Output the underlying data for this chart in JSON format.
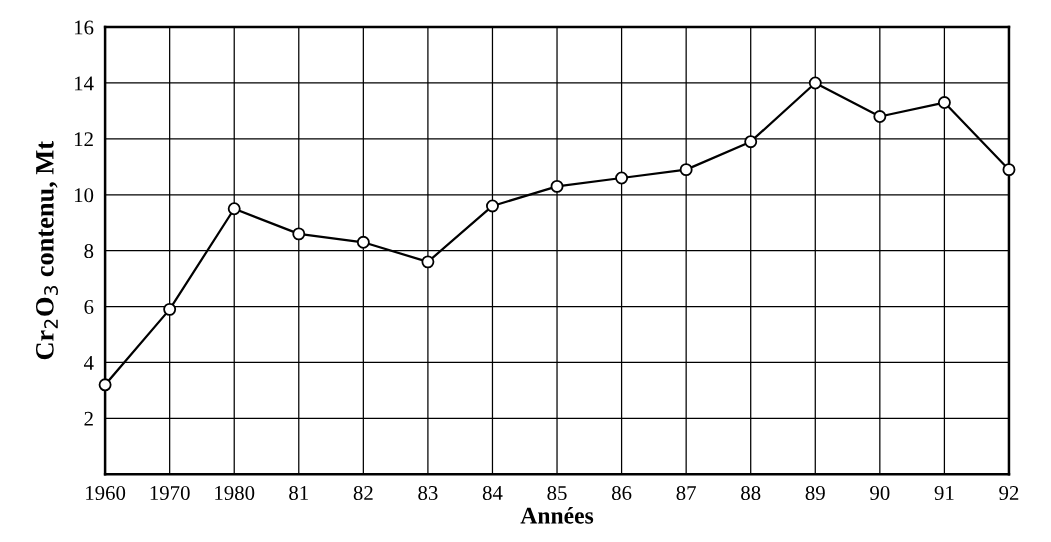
{
  "chart_data": {
    "type": "line",
    "xlabel": "Années",
    "ylabel": "Cr$_{2}$O$_{3}$ contenu, Mt",
    "categories": [
      "1960",
      "1970",
      "1980",
      "81",
      "82",
      "83",
      "84",
      "85",
      "86",
      "87",
      "88",
      "89",
      "90",
      "91",
      "92"
    ],
    "series": [
      {
        "color": "#000000",
        "values": [
          3.2,
          5.9,
          9.5,
          8.6,
          8.3,
          7.6,
          9.6,
          10.3,
          10.6,
          10.9,
          11.9,
          14.0,
          12.8,
          13.3,
          10.9
        ]
      }
    ],
    "ylim": [
      0,
      16
    ],
    "yticks": [
      2,
      4,
      6,
      8,
      10,
      12,
      14,
      16
    ],
    "grid": true,
    "marker": "circle",
    "line_style": "solid"
  }
}
